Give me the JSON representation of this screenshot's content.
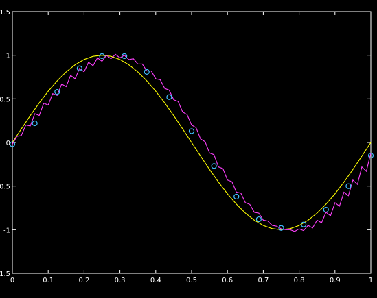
{
  "chart_data": {
    "type": "line",
    "title": "",
    "xlabel": "",
    "ylabel": "",
    "xlim": [
      0,
      1
    ],
    "ylim": [
      -1.5,
      1.5
    ],
    "grid": false,
    "background": "#000000",
    "axis_color": "#ffffff",
    "x_ticks": [
      0,
      0.1,
      0.2,
      0.3,
      0.4,
      0.5,
      0.6,
      0.7,
      0.8,
      0.9,
      1
    ],
    "x_tick_labels": [
      "0",
      "0.1",
      "0.2",
      "0.3",
      "0.4",
      "0.5",
      "0.6",
      "0.7",
      "0.8",
      "0.9",
      "1"
    ],
    "y_ticks": [
      -1.5,
      -1,
      -0.5,
      0,
      0.5,
      1,
      1.5
    ],
    "y_tick_labels": [
      "-1.5",
      "-1",
      "-0.5",
      "0",
      "0.5",
      "1",
      "1.5"
    ],
    "series": [
      {
        "color": "#ffff00",
        "style": "line",
        "x": [
          0,
          0.025,
          0.05,
          0.075,
          0.1,
          0.125,
          0.15,
          0.175,
          0.2,
          0.225,
          0.25,
          0.275,
          0.3,
          0.325,
          0.35,
          0.375,
          0.4,
          0.425,
          0.45,
          0.475,
          0.5,
          0.525,
          0.55,
          0.575,
          0.6,
          0.625,
          0.65,
          0.675,
          0.7,
          0.725,
          0.75,
          0.775,
          0.8,
          0.825,
          0.85,
          0.875,
          0.9,
          0.925,
          0.95,
          0.975,
          1
        ],
        "y": [
          0,
          0.156,
          0.309,
          0.454,
          0.588,
          0.707,
          0.809,
          0.891,
          0.951,
          0.988,
          1,
          0.988,
          0.951,
          0.891,
          0.809,
          0.707,
          0.588,
          0.454,
          0.309,
          0.156,
          0,
          -0.156,
          -0.309,
          -0.454,
          -0.588,
          -0.707,
          -0.809,
          -0.891,
          -0.951,
          -0.988,
          -1,
          -0.988,
          -0.951,
          -0.891,
          -0.809,
          -0.707,
          -0.588,
          -0.454,
          -0.309,
          -0.156,
          0
        ]
      },
      {
        "color": "#ff40ff",
        "style": "line",
        "x": [
          0,
          0.0125,
          0.025,
          0.0375,
          0.05,
          0.0625,
          0.075,
          0.0875,
          0.1,
          0.1125,
          0.125,
          0.1375,
          0.15,
          0.1625,
          0.175,
          0.1875,
          0.2,
          0.2125,
          0.225,
          0.2375,
          0.25,
          0.2625,
          0.275,
          0.2875,
          0.3,
          0.3125,
          0.325,
          0.3375,
          0.35,
          0.3625,
          0.375,
          0.3875,
          0.4,
          0.4125,
          0.425,
          0.4375,
          0.45,
          0.4625,
          0.475,
          0.4875,
          0.5,
          0.5125,
          0.525,
          0.5375,
          0.55,
          0.5625,
          0.575,
          0.5875,
          0.6,
          0.6125,
          0.625,
          0.6375,
          0.65,
          0.6625,
          0.675,
          0.6875,
          0.7,
          0.7125,
          0.725,
          0.7375,
          0.75,
          0.7625,
          0.775,
          0.7875,
          0.8,
          0.8125,
          0.825,
          0.8375,
          0.85,
          0.8625,
          0.875,
          0.8875,
          0.9,
          0.9125,
          0.925,
          0.9375,
          0.95,
          0.9625,
          0.975,
          0.9875,
          1
        ],
        "y": [
          -0.02,
          0.07,
          0.08,
          0.2,
          0.19,
          0.33,
          0.31,
          0.45,
          0.43,
          0.56,
          0.54,
          0.67,
          0.64,
          0.77,
          0.73,
          0.85,
          0.81,
          0.92,
          0.88,
          0.97,
          0.93,
          1.0,
          0.96,
          1.01,
          0.97,
          1.0,
          0.95,
          0.96,
          0.9,
          0.9,
          0.82,
          0.82,
          0.73,
          0.72,
          0.62,
          0.6,
          0.49,
          0.47,
          0.35,
          0.32,
          0.2,
          0.17,
          0.04,
          0.01,
          -0.12,
          -0.14,
          -0.28,
          -0.3,
          -0.43,
          -0.45,
          -0.57,
          -0.58,
          -0.69,
          -0.71,
          -0.8,
          -0.81,
          -0.89,
          -0.9,
          -0.95,
          -0.96,
          -0.99,
          -1.0,
          -1.0,
          -1.02,
          -0.99,
          -1.01,
          -0.95,
          -0.98,
          -0.89,
          -0.92,
          -0.8,
          -0.84,
          -0.69,
          -0.73,
          -0.57,
          -0.61,
          -0.43,
          -0.48,
          -0.28,
          -0.33,
          -0.12
        ]
      },
      {
        "color": "#40c0ff",
        "style": "markers",
        "marker": "circle",
        "x": [
          0,
          0.0625,
          0.125,
          0.1875,
          0.25,
          0.3125,
          0.375,
          0.4375,
          0.5,
          0.5625,
          0.625,
          0.6875,
          0.75,
          0.8125,
          0.875,
          0.9375,
          1
        ],
        "y": [
          -0.02,
          0.22,
          0.58,
          0.85,
          0.99,
          0.99,
          0.81,
          0.52,
          0.13,
          -0.27,
          -0.62,
          -0.88,
          -0.98,
          -0.94,
          -0.77,
          -0.5,
          -0.15
        ]
      }
    ]
  }
}
